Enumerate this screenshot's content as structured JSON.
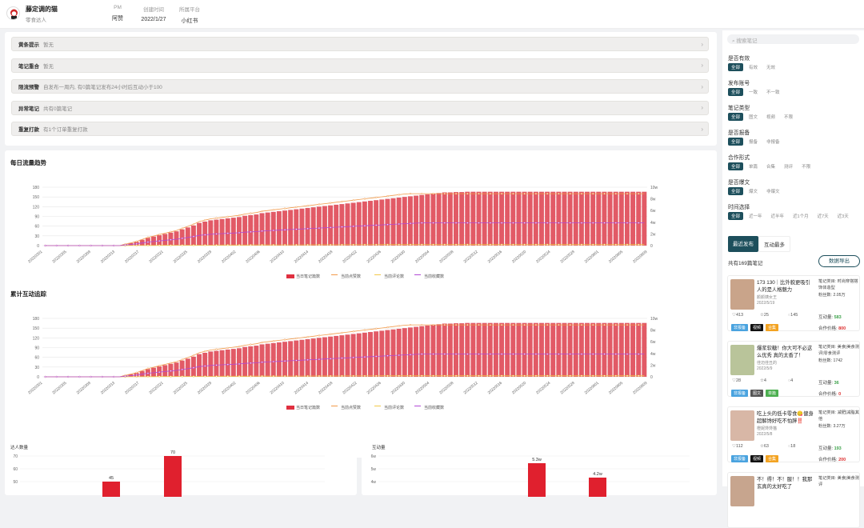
{
  "header": {
    "name": "藤定调的猫",
    "subtitle": "零食达人",
    "meta": [
      {
        "key": "PM",
        "value": "阿赞"
      },
      {
        "key": "创建时间",
        "value": "2022/1/27"
      },
      {
        "key": "所属平台",
        "value": "小红书"
      }
    ]
  },
  "alerts": [
    {
      "label": "黄条提示",
      "detail": "暂无"
    },
    {
      "label": "笔记重合",
      "detail": "暂无"
    },
    {
      "label": "限流预警",
      "detail": "自发布一周内, 有0篇笔记发布24小时后互动小于100"
    },
    {
      "label": "异常笔记",
      "detail": "共有0篇笔记"
    },
    {
      "label": "重复打款",
      "detail": "有1个订单重复打款"
    }
  ],
  "charts": {
    "daily_title": "每日流量趋势",
    "cumulative_title": "累计互动追踪",
    "legend": [
      "当日笔记篇数",
      "当前点赞数",
      "当前评论数",
      "当前收藏数"
    ],
    "left_axis": [
      "180",
      "150",
      "120",
      "90",
      "60",
      "30",
      "0"
    ],
    "right_axis": [
      "10w",
      "8w",
      "6w",
      "4w",
      "2w",
      "0"
    ],
    "dates": [
      "20220301",
      "20220305",
      "20220309",
      "20220313",
      "20220317",
      "20220321",
      "20220325",
      "20220329",
      "20220402",
      "20220406",
      "20220410",
      "20220414",
      "20220418",
      "20220422",
      "20220426",
      "20220430",
      "20220504",
      "20220508",
      "20220512",
      "20220516",
      "20220520",
      "20220524",
      "20220528",
      "20220601",
      "20220605",
      "20220609"
    ],
    "bottom_left": {
      "title": "达人数量",
      "axis": [
        "70",
        "60",
        "50"
      ],
      "labels": [
        "45",
        "70"
      ]
    },
    "bottom_right": {
      "title": "互动量",
      "axis": [
        "6w",
        "5w",
        "4w"
      ],
      "labels": [
        "5.3w",
        "4.2w"
      ]
    }
  },
  "chart_data": [
    {
      "type": "bar",
      "title": "每日流量趋势",
      "series": [
        {
          "name": "当日笔记篇数",
          "values": [
            0,
            0,
            0,
            0,
            0,
            0,
            0,
            0,
            0,
            0,
            0,
            0,
            0,
            0,
            4,
            8,
            12,
            18,
            24,
            28,
            32,
            36,
            40,
            44,
            50,
            56,
            62,
            70,
            74,
            78,
            80,
            82,
            84,
            86,
            88,
            92,
            94,
            96,
            100,
            102,
            104,
            106,
            108,
            110,
            112,
            114,
            116,
            118,
            120,
            122,
            124,
            126,
            128,
            130,
            132,
            134,
            136,
            138,
            140,
            142,
            144,
            146,
            148,
            150,
            152,
            154,
            156,
            158,
            160,
            162,
            164,
            164,
            165,
            165,
            166,
            166,
            166,
            166,
            166,
            166,
            166,
            166,
            166,
            166,
            166,
            166,
            166,
            166,
            166,
            166,
            166,
            166,
            166,
            166,
            166,
            166,
            166,
            166,
            166,
            166,
            166,
            166,
            166,
            166,
            166,
            166
          ]
        },
        {
          "name": "当前点赞数",
          "values": []
        },
        {
          "name": "当前评论数",
          "values": []
        },
        {
          "name": "当前收藏数",
          "values": []
        }
      ],
      "ylim": [
        0,
        180
      ]
    },
    {
      "type": "bar",
      "title": "累计互动追踪",
      "series": [
        {
          "name": "当日笔记篇数",
          "values": [
            0,
            0,
            0,
            0,
            0,
            0,
            0,
            0,
            0,
            0,
            0,
            0,
            0,
            0,
            4,
            8,
            12,
            18,
            24,
            28,
            32,
            36,
            40,
            44,
            50,
            56,
            62,
            70,
            74,
            78,
            80,
            82,
            84,
            86,
            88,
            92,
            94,
            96,
            100,
            102,
            104,
            106,
            108,
            110,
            112,
            114,
            116,
            118,
            120,
            122,
            124,
            126,
            128,
            130,
            132,
            134,
            136,
            138,
            140,
            142,
            144,
            146,
            148,
            150,
            152,
            154,
            156,
            158,
            160,
            162,
            164,
            164,
            165,
            165,
            166,
            166,
            166,
            166,
            166,
            166,
            166,
            166,
            166,
            166,
            166,
            166,
            166,
            166,
            166,
            166,
            166,
            166,
            166,
            166,
            166,
            166,
            166,
            166,
            166,
            166,
            166,
            166,
            166,
            166,
            166,
            166
          ]
        }
      ],
      "ylim": [
        0,
        180
      ]
    }
  ],
  "sidebar": {
    "search_placeholder": "搜索笔记",
    "filters": [
      {
        "label": "是否有效",
        "options": [
          "全部",
          "有效",
          "无效"
        ]
      },
      {
        "label": "发布账号",
        "options": [
          "全部",
          "一致",
          "不一致"
        ]
      },
      {
        "label": "笔记类型",
        "options": [
          "全部",
          "图文",
          "视频",
          "不限"
        ]
      },
      {
        "label": "是否报备",
        "options": [
          "全部",
          "报备",
          "非报备"
        ]
      },
      {
        "label": "合作形式",
        "options": [
          "全部",
          "单篇",
          "合集",
          "测评",
          "不限"
        ]
      },
      {
        "label": "是否爆文",
        "options": [
          "全部",
          "爆文",
          "非爆文"
        ]
      },
      {
        "label": "时间选择",
        "options": [
          "全部",
          "近一年",
          "近半年",
          "近1个月",
          "近7天",
          "近3天"
        ]
      }
    ],
    "tabs": [
      "最近发布",
      "互动最多"
    ],
    "count": "共有169篇笔记",
    "export": "数据导出",
    "notes": [
      {
        "title": "173 130｜比外貌更吸引人的是人格魅力",
        "author": "颜颜姨女王",
        "date": "2022/5/19",
        "likes": "413",
        "stars": "25",
        "comments": "145",
        "cat": "笔记类目: 时尚穿搭搭饰体造型",
        "fans": "粉丝数: 2.05万",
        "inter_label": "互动量:",
        "inter": "583",
        "price_label": "合作价格:",
        "price": "800",
        "tags": [
          "非报备",
          "视频",
          "合集"
        ]
      },
      {
        "title": "爆浆软糖！你大可不必这么优秀 真的太香了！",
        "author": "佳迈佳丑的",
        "date": "2022/5/9",
        "likes": "28",
        "stars": "4",
        "comments": "4",
        "cat": "笔记类目: 美食|美食测评|零食测评",
        "fans": "粉丝数: 1742",
        "inter_label": "互动量:",
        "inter": "36",
        "price_label": "合作价格:",
        "price": "0",
        "tags": [
          "非报备",
          "图文",
          "单篇"
        ]
      },
      {
        "title": "吃上头的低卡零食😋健身超解馋好吃不怕胖‼️",
        "author": "橙妮馋馋猫",
        "date": "2022/5/8",
        "likes": "112",
        "stars": "63",
        "comments": "18",
        "cat": "笔记类目: 减肥|减脂其他",
        "fans": "粉丝数: 3.27万",
        "inter_label": "互动量:",
        "inter": "193",
        "price_label": "合作价格:",
        "price": "200",
        "tags": [
          "非报备",
          "视频",
          "合集"
        ]
      },
      {
        "title": "不！得！不！服！！我那玄真的太好吃了",
        "cat": "笔记类目: 美食|美食测评",
        "tags": []
      }
    ]
  }
}
